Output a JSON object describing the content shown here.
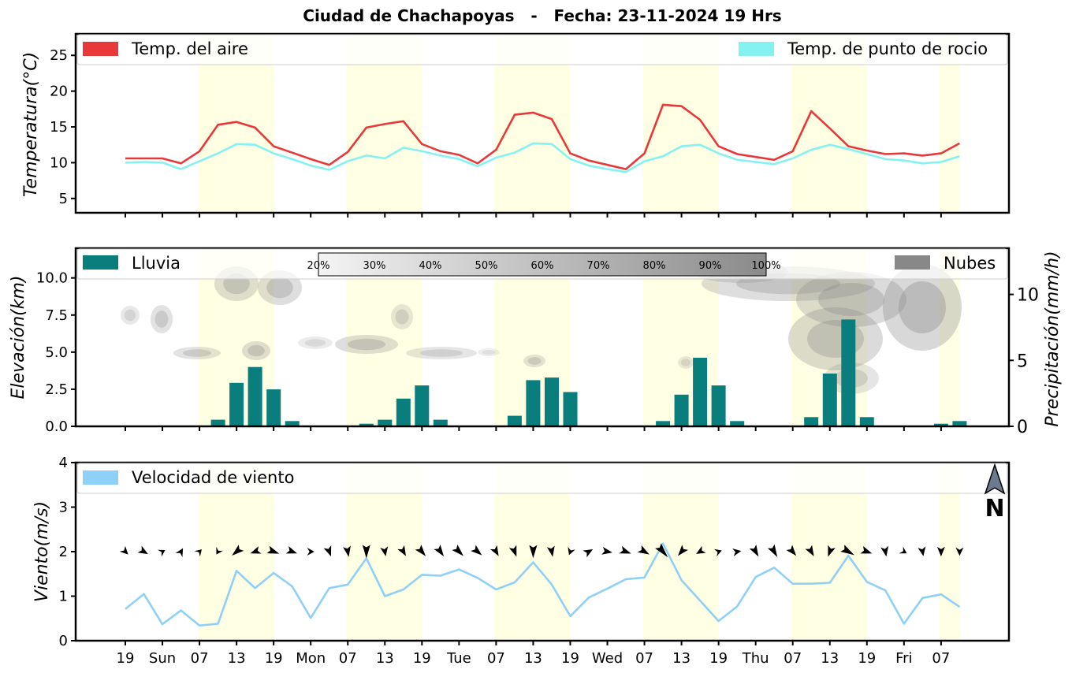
{
  "title": "Ciudad de Chachapoyas   -   Fecha: 23-11-2024 19 Hrs",
  "x_tick_labels": [
    "19",
    "Sun",
    "07",
    "13",
    "19",
    "Mon",
    "07",
    "13",
    "19",
    "Tue",
    "07",
    "13",
    "19",
    "Wed",
    "07",
    "13",
    "19",
    "Thu",
    "07",
    "13",
    "19",
    "Fri",
    "07"
  ],
  "colors": {
    "daytime_band": "#ffffe4",
    "air_temp": "#e8383a",
    "dew_point": "#85f2f2",
    "rain": "#0a7d7d",
    "clouds": "#888888",
    "wind_line": "#8fd0f8",
    "arrows": "#000000"
  },
  "north_label": "N",
  "north_icon": "north-arrow-icon",
  "chart_data": [
    {
      "type": "line",
      "panel": "temperature",
      "ylabel": "Temperatura(°C)",
      "ylim": [
        3,
        28
      ],
      "yticks": [
        "5",
        "10",
        "15",
        "20",
        "25"
      ],
      "ytick_values": [
        5,
        10,
        15,
        20,
        25
      ],
      "legend_placement": "top",
      "series": [
        {
          "name": "Temp. del aire",
          "values": [
            10.6,
            10.6,
            10.6,
            9.9,
            11.6,
            15.3,
            15.7,
            14.9,
            12.3,
            11.4,
            10.5,
            9.7,
            11.5,
            14.9,
            15.4,
            15.8,
            12.6,
            11.6,
            11.1,
            9.9,
            11.8,
            16.7,
            17.0,
            16.1,
            11.3,
            10.3,
            9.7,
            9.1,
            11.3,
            18.1,
            17.9,
            16.0,
            12.3,
            11.2,
            10.8,
            10.4,
            11.6,
            17.2,
            14.8,
            12.3,
            11.7,
            11.2,
            11.3,
            11.0,
            11.3,
            12.7
          ]
        },
        {
          "name": "Temp. de punto de rocio",
          "values": [
            10.0,
            10.1,
            10.0,
            9.1,
            10.2,
            11.3,
            12.6,
            12.5,
            11.3,
            10.5,
            9.6,
            9.0,
            10.2,
            11.0,
            10.6,
            12.1,
            11.6,
            11.0,
            10.5,
            9.5,
            10.7,
            11.4,
            12.7,
            12.6,
            10.5,
            9.6,
            9.1,
            8.7,
            10.2,
            10.9,
            12.3,
            12.5,
            11.3,
            10.4,
            10.1,
            9.8,
            10.6,
            11.8,
            12.5,
            11.9,
            11.2,
            10.5,
            10.3,
            9.9,
            10.1,
            10.9
          ]
        }
      ]
    },
    {
      "type": "bar",
      "panel": "precipitation",
      "ylabel": "Elevación(km)",
      "ylabel_right": "Precipitación(mm/h)",
      "ylim": [
        0,
        12
      ],
      "yticks": [
        "0.0",
        "2.5",
        "5.0",
        "7.5",
        "10.0"
      ],
      "ytick_values": [
        0,
        2.5,
        5,
        7.5,
        10
      ],
      "ylim_right": [
        0,
        13.5
      ],
      "yticks_right": [
        "0",
        "5",
        "10"
      ],
      "ytick_values_right": [
        0,
        5,
        10
      ],
      "series": [
        {
          "name": "Lluvia",
          "values": [
            0,
            0,
            0,
            0,
            0,
            0.5,
            3.3,
            4.5,
            2.8,
            0.4,
            0,
            0,
            0,
            0.2,
            0.5,
            2.1,
            3.1,
            0.5,
            0,
            0,
            0,
            0.8,
            3.5,
            3.7,
            2.6,
            0,
            0,
            0,
            0,
            0.4,
            2.4,
            5.2,
            3.1,
            0.4,
            0,
            0,
            0,
            0.7,
            4.0,
            8.1,
            0.7,
            0,
            0,
            0,
            0.2,
            0.4
          ]
        }
      ],
      "legend_cloud": "Nubes",
      "cloud_colorbar_labels": [
        "20%",
        "30%",
        "40%",
        "50%",
        "60%",
        "70%",
        "80%",
        "90%",
        "100%"
      ]
    },
    {
      "type": "line",
      "panel": "wind",
      "ylabel": "Viento(m/s)",
      "ylim": [
        0,
        4
      ],
      "yticks": [
        "0",
        "1",
        "2",
        "3",
        "4"
      ],
      "ytick_values": [
        0,
        1,
        2,
        3,
        4
      ],
      "series": [
        {
          "name": "Velocidad de viento",
          "values": [
            0.71,
            1.05,
            0.37,
            0.68,
            0.34,
            0.38,
            1.57,
            1.18,
            1.52,
            1.22,
            0.51,
            1.18,
            1.26,
            1.85,
            1.0,
            1.15,
            1.48,
            1.46,
            1.6,
            1.41,
            1.15,
            1.31,
            1.76,
            1.26,
            0.55,
            0.97,
            1.17,
            1.38,
            1.42,
            2.18,
            1.36,
            0.9,
            0.44,
            0.77,
            1.43,
            1.64,
            1.28,
            1.28,
            1.3,
            1.91,
            1.32,
            1.13,
            0.38,
            0.96,
            1.04,
            0.76
          ]
        }
      ],
      "wind_direction_deg": [
        135,
        120,
        60,
        30,
        45,
        210,
        230,
        250,
        110,
        110,
        90,
        160,
        170,
        180,
        170,
        150,
        140,
        145,
        135,
        130,
        150,
        160,
        180,
        170,
        200,
        60,
        100,
        110,
        120,
        140,
        220,
        240,
        70,
        80,
        150,
        150,
        140,
        150,
        200,
        120,
        110,
        170,
        120,
        170,
        180,
        180
      ]
    }
  ]
}
